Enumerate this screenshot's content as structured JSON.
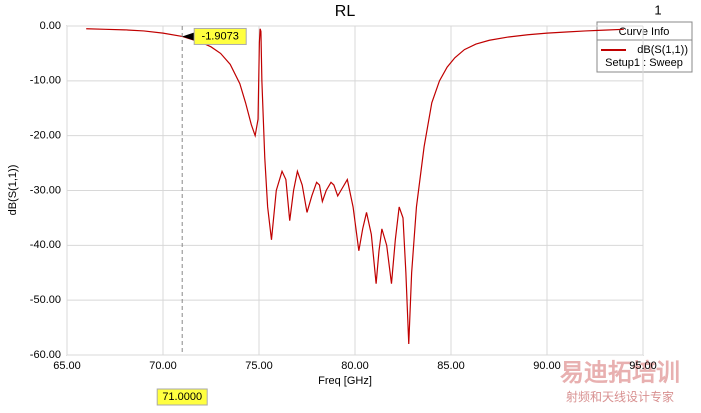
{
  "chart_data": {
    "type": "line",
    "title": "RL",
    "marker_id": "1",
    "x_label": "Freq [GHz]",
    "y_label": "dB(S(1,1))",
    "legend_title": "Curve Info",
    "legend_subtitle": "Setup1 : Sweep",
    "x": [
      66,
      67,
      68,
      69,
      70,
      71,
      72,
      72.5,
      73,
      73.5,
      74,
      74.3,
      74.6,
      74.8,
      74.95,
      75.02,
      75.06,
      75.1,
      75.15,
      75.3,
      75.45,
      75.65,
      75.9,
      76.2,
      76.4,
      76.6,
      76.8,
      77.0,
      77.25,
      77.5,
      77.75,
      78.0,
      78.15,
      78.3,
      78.5,
      78.75,
      78.9,
      79.1,
      79.35,
      79.6,
      79.9,
      80.2,
      80.4,
      80.6,
      80.85,
      81.1,
      81.25,
      81.4,
      81.65,
      81.9,
      82.1,
      82.3,
      82.5,
      82.65,
      82.8,
      82.95,
      83.2,
      83.6,
      84.0,
      84.4,
      84.8,
      85.2,
      85.7,
      86.3,
      87,
      88,
      89,
      90,
      91,
      92,
      93,
      94
    ],
    "series": [
      {
        "name": "dB(S(1,1))",
        "color": "#c00000",
        "values": [
          -0.5,
          -0.6,
          -0.7,
          -0.9,
          -1.3,
          -1.9073,
          -3,
          -3.8,
          -5,
          -7,
          -10.5,
          -14,
          -18,
          -20,
          -17,
          -3,
          -0.5,
          -1,
          -10,
          -24,
          -33,
          -39,
          -30,
          -26.5,
          -28,
          -35.5,
          -30,
          -26.5,
          -29,
          -34,
          -31,
          -28.5,
          -29,
          -32,
          -30,
          -28.5,
          -29,
          -31,
          -29.5,
          -28,
          -33,
          -41,
          -37,
          -34,
          -38,
          -47,
          -41,
          -37,
          -40,
          -47,
          -39,
          -33,
          -35,
          -45,
          -58,
          -45,
          -33,
          -22,
          -14,
          -10,
          -7.5,
          -5.8,
          -4.3,
          -3.3,
          -2.6,
          -2,
          -1.6,
          -1.3,
          -1.1,
          -0.9,
          -0.75,
          -0.6
        ]
      }
    ],
    "xlim": [
      65,
      95
    ],
    "xticks": [
      {
        "value": 65,
        "label": "65.00"
      },
      {
        "value": 70,
        "label": "70.00"
      },
      {
        "value": 75,
        "label": "75.00"
      },
      {
        "value": 80,
        "label": "80.00"
      },
      {
        "value": 85,
        "label": "85.00"
      },
      {
        "value": 90,
        "label": "90.00"
      },
      {
        "value": 95,
        "label": "95.00"
      }
    ],
    "ylim": [
      -60,
      0
    ],
    "yticks": [
      {
        "value": 0,
        "label": "0.00"
      },
      {
        "value": -10,
        "label": "-10.00"
      },
      {
        "value": -20,
        "label": "-20.00"
      },
      {
        "value": -30,
        "label": "-30.00"
      },
      {
        "value": -40,
        "label": "-40.00"
      },
      {
        "value": -50,
        "label": "-50.00"
      },
      {
        "value": -60,
        "label": "-60.00"
      }
    ],
    "grid": true,
    "marker": {
      "x": {
        "value": 71,
        "label": "71.0000"
      },
      "y": -1.9073
    },
    "watermark": {
      "title": "易迪拓培训",
      "subtitle": "射频和天线设计专家"
    }
  }
}
